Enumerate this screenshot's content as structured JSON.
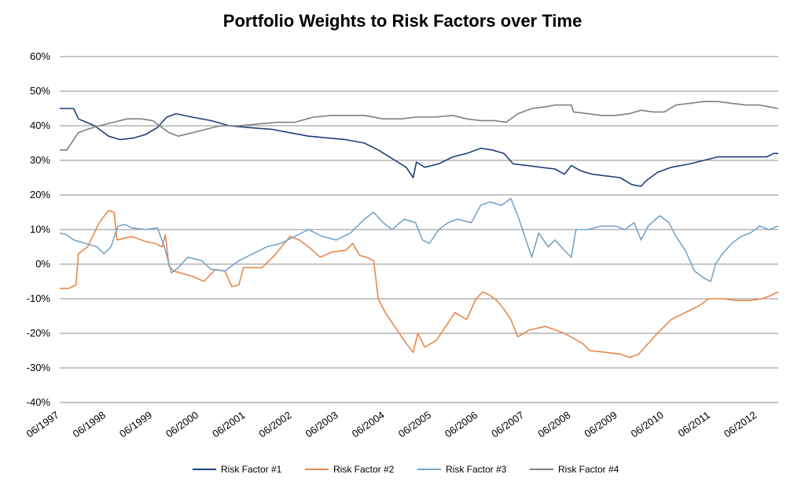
{
  "chart_data": {
    "type": "line",
    "title": "Portfolio Weights to Risk Factors over Time",
    "xlabel": "",
    "ylabel": "",
    "ylim": [
      -40,
      60
    ],
    "y_ticks": [
      -40,
      -30,
      -20,
      -10,
      0,
      10,
      20,
      30,
      40,
      50,
      60
    ],
    "y_tick_labels": [
      "-40%",
      "-30%",
      "-20%",
      "-10%",
      "0%",
      "10%",
      "20%",
      "30%",
      "40%",
      "50%",
      "60%"
    ],
    "xlim": [
      1997.45,
      2012.9
    ],
    "x_ticks": [
      1997.45,
      1998.45,
      1999.45,
      2000.45,
      2001.45,
      2002.45,
      2003.45,
      2004.45,
      2005.45,
      2006.45,
      2007.45,
      2008.45,
      2009.45,
      2010.45,
      2011.45,
      2012.45
    ],
    "x_tick_labels": [
      "06/1997",
      "06/1998",
      "06/1999",
      "06/2000",
      "06/2001",
      "06/2002",
      "06/2003",
      "06/2004",
      "06/2005",
      "06/2006",
      "06/2007",
      "06/2008",
      "06/2009",
      "06/2010",
      "06/2011",
      "06/2012"
    ],
    "grid": true,
    "legend_position": "bottom",
    "series": [
      {
        "name": "Risk Factor #1",
        "color": "#1f3f7a",
        "points": [
          [
            1997.45,
            45
          ],
          [
            1997.75,
            45
          ],
          [
            1997.85,
            42
          ],
          [
            1998.2,
            40
          ],
          [
            1998.5,
            37
          ],
          [
            1998.75,
            36
          ],
          [
            1999.05,
            36.5
          ],
          [
            1999.3,
            37.5
          ],
          [
            1999.55,
            39.5
          ],
          [
            1999.75,
            42.5
          ],
          [
            1999.95,
            43.5
          ],
          [
            2000.3,
            42.5
          ],
          [
            2000.7,
            41.5
          ],
          [
            2001.1,
            40
          ],
          [
            2001.5,
            39.5
          ],
          [
            2002.0,
            39
          ],
          [
            2002.4,
            38
          ],
          [
            2002.8,
            37
          ],
          [
            2003.2,
            36.5
          ],
          [
            2003.6,
            36
          ],
          [
            2004.0,
            35
          ],
          [
            2004.3,
            33
          ],
          [
            2004.6,
            30.5
          ],
          [
            2004.9,
            28
          ],
          [
            2005.05,
            25
          ],
          [
            2005.12,
            29.5
          ],
          [
            2005.3,
            28
          ],
          [
            2005.6,
            29
          ],
          [
            2005.9,
            31
          ],
          [
            2006.2,
            32
          ],
          [
            2006.5,
            33.5
          ],
          [
            2006.75,
            33
          ],
          [
            2007.0,
            32
          ],
          [
            2007.2,
            29
          ],
          [
            2007.5,
            28.5
          ],
          [
            2007.8,
            28
          ],
          [
            2008.1,
            27.5
          ],
          [
            2008.3,
            26
          ],
          [
            2008.45,
            28.5
          ],
          [
            2008.65,
            27
          ],
          [
            2008.9,
            26
          ],
          [
            2009.2,
            25.5
          ],
          [
            2009.5,
            25
          ],
          [
            2009.75,
            23
          ],
          [
            2009.95,
            22.5
          ],
          [
            2010.05,
            24
          ],
          [
            2010.3,
            26.5
          ],
          [
            2010.6,
            28
          ],
          [
            2011.0,
            29
          ],
          [
            2011.3,
            30
          ],
          [
            2011.6,
            31
          ],
          [
            2012.0,
            31
          ],
          [
            2012.4,
            31
          ],
          [
            2012.65,
            31
          ],
          [
            2012.8,
            32
          ],
          [
            2012.9,
            32
          ]
        ]
      },
      {
        "name": "Risk Factor #2",
        "color": "#e8884a",
        "points": [
          [
            1997.45,
            -7
          ],
          [
            1997.65,
            -7
          ],
          [
            1997.8,
            -6
          ],
          [
            1997.85,
            3
          ],
          [
            1998.05,
            5
          ],
          [
            1998.3,
            12
          ],
          [
            1998.5,
            15.5
          ],
          [
            1998.62,
            15
          ],
          [
            1998.68,
            7
          ],
          [
            1999.0,
            8
          ],
          [
            1999.3,
            6.5
          ],
          [
            1999.5,
            6
          ],
          [
            1999.65,
            5
          ],
          [
            1999.72,
            8.5
          ],
          [
            1999.8,
            -0.5
          ],
          [
            1999.9,
            -2
          ],
          [
            2000.3,
            -3.5
          ],
          [
            2000.55,
            -5
          ],
          [
            2000.8,
            -1.5
          ],
          [
            2001.0,
            -2
          ],
          [
            2001.15,
            -6.5
          ],
          [
            2001.3,
            -6
          ],
          [
            2001.4,
            -1
          ],
          [
            2001.8,
            -1
          ],
          [
            2002.1,
            3
          ],
          [
            2002.4,
            8
          ],
          [
            2002.6,
            7
          ],
          [
            2002.8,
            5
          ],
          [
            2003.05,
            2
          ],
          [
            2003.3,
            3.5
          ],
          [
            2003.6,
            4
          ],
          [
            2003.75,
            6
          ],
          [
            2003.9,
            2.5
          ],
          [
            2004.05,
            2
          ],
          [
            2004.2,
            1
          ],
          [
            2004.3,
            -10
          ],
          [
            2004.45,
            -14
          ],
          [
            2004.65,
            -18
          ],
          [
            2004.85,
            -22
          ],
          [
            2005.05,
            -25.5
          ],
          [
            2005.15,
            -20
          ],
          [
            2005.3,
            -24
          ],
          [
            2005.55,
            -22
          ],
          [
            2005.75,
            -18
          ],
          [
            2005.95,
            -14
          ],
          [
            2006.2,
            -16
          ],
          [
            2006.4,
            -10
          ],
          [
            2006.55,
            -8
          ],
          [
            2006.7,
            -9
          ],
          [
            2006.85,
            -10.5
          ],
          [
            2007.0,
            -13
          ],
          [
            2007.15,
            -16
          ],
          [
            2007.3,
            -21
          ],
          [
            2007.55,
            -19
          ],
          [
            2007.9,
            -18
          ],
          [
            2008.3,
            -20
          ],
          [
            2008.5,
            -21.5
          ],
          [
            2008.7,
            -23
          ],
          [
            2008.85,
            -25
          ],
          [
            2009.2,
            -25.5
          ],
          [
            2009.5,
            -26
          ],
          [
            2009.7,
            -27
          ],
          [
            2009.9,
            -26
          ],
          [
            2010.1,
            -23
          ],
          [
            2010.3,
            -20
          ],
          [
            2010.6,
            -16
          ],
          [
            2010.9,
            -14
          ],
          [
            2011.2,
            -12
          ],
          [
            2011.4,
            -10
          ],
          [
            2011.7,
            -10
          ],
          [
            2012.0,
            -10.5
          ],
          [
            2012.3,
            -10.5
          ],
          [
            2012.55,
            -10
          ],
          [
            2012.75,
            -9
          ],
          [
            2012.9,
            -8
          ]
        ]
      },
      {
        "name": "Risk Factor #3",
        "color": "#7aa3c8",
        "points": [
          [
            1997.45,
            9
          ],
          [
            1997.6,
            8.5
          ],
          [
            1997.75,
            7
          ],
          [
            1998.0,
            6
          ],
          [
            1998.25,
            5
          ],
          [
            1998.4,
            3
          ],
          [
            1998.55,
            5
          ],
          [
            1998.7,
            11
          ],
          [
            1998.85,
            11.5
          ],
          [
            1999.0,
            10.5
          ],
          [
            1999.3,
            10
          ],
          [
            1999.55,
            10.5
          ],
          [
            1999.7,
            5
          ],
          [
            1999.85,
            -2.5
          ],
          [
            2000.0,
            -1
          ],
          [
            2000.2,
            2
          ],
          [
            2000.5,
            1
          ],
          [
            2000.7,
            -1.5
          ],
          [
            2001.0,
            -2
          ],
          [
            2001.3,
            1
          ],
          [
            2001.6,
            3
          ],
          [
            2001.9,
            5
          ],
          [
            2002.2,
            6
          ],
          [
            2002.5,
            8
          ],
          [
            2002.8,
            10
          ],
          [
            2003.1,
            8
          ],
          [
            2003.4,
            7
          ],
          [
            2003.7,
            9
          ],
          [
            2004.0,
            13
          ],
          [
            2004.2,
            15
          ],
          [
            2004.4,
            12
          ],
          [
            2004.6,
            10
          ],
          [
            2004.85,
            13
          ],
          [
            2005.1,
            12
          ],
          [
            2005.25,
            7
          ],
          [
            2005.4,
            6
          ],
          [
            2005.6,
            10
          ],
          [
            2005.8,
            12
          ],
          [
            2006.0,
            13
          ],
          [
            2006.3,
            12
          ],
          [
            2006.5,
            17
          ],
          [
            2006.7,
            18
          ],
          [
            2006.95,
            17
          ],
          [
            2007.15,
            19
          ],
          [
            2007.3,
            14
          ],
          [
            2007.45,
            8
          ],
          [
            2007.6,
            2
          ],
          [
            2007.75,
            9
          ],
          [
            2007.95,
            5
          ],
          [
            2008.1,
            7
          ],
          [
            2008.3,
            4
          ],
          [
            2008.45,
            2
          ],
          [
            2008.55,
            10
          ],
          [
            2008.8,
            10
          ],
          [
            2009.1,
            11
          ],
          [
            2009.4,
            11
          ],
          [
            2009.6,
            10
          ],
          [
            2009.8,
            12
          ],
          [
            2009.95,
            7
          ],
          [
            2010.1,
            11
          ],
          [
            2010.35,
            14
          ],
          [
            2010.55,
            12
          ],
          [
            2010.7,
            8
          ],
          [
            2010.9,
            4
          ],
          [
            2011.1,
            -2
          ],
          [
            2011.3,
            -4
          ],
          [
            2011.45,
            -5
          ],
          [
            2011.55,
            0
          ],
          [
            2011.7,
            3
          ],
          [
            2011.9,
            6
          ],
          [
            2012.1,
            8
          ],
          [
            2012.3,
            9
          ],
          [
            2012.5,
            11
          ],
          [
            2012.7,
            10
          ],
          [
            2012.9,
            11
          ]
        ]
      },
      {
        "name": "Risk Factor #4",
        "color": "#7f7f7f",
        "points": [
          [
            1997.45,
            33
          ],
          [
            1997.6,
            33
          ],
          [
            1997.7,
            35
          ],
          [
            1997.85,
            38
          ],
          [
            1998.05,
            39
          ],
          [
            1998.3,
            40
          ],
          [
            1998.6,
            41
          ],
          [
            1998.9,
            42
          ],
          [
            1999.2,
            42
          ],
          [
            1999.45,
            41.5
          ],
          [
            1999.6,
            40
          ],
          [
            1999.8,
            38
          ],
          [
            2000.0,
            37
          ],
          [
            2000.3,
            38
          ],
          [
            2000.6,
            39
          ],
          [
            2000.9,
            40
          ],
          [
            2001.3,
            40
          ],
          [
            2001.7,
            40.5
          ],
          [
            2002.1,
            41
          ],
          [
            2002.5,
            41
          ],
          [
            2002.9,
            42.5
          ],
          [
            2003.3,
            43
          ],
          [
            2003.7,
            43
          ],
          [
            2004.0,
            43
          ],
          [
            2004.4,
            42
          ],
          [
            2004.8,
            42
          ],
          [
            2005.1,
            42.5
          ],
          [
            2005.5,
            42.5
          ],
          [
            2005.9,
            43
          ],
          [
            2006.2,
            42
          ],
          [
            2006.5,
            41.5
          ],
          [
            2006.8,
            41.5
          ],
          [
            2007.05,
            41
          ],
          [
            2007.3,
            43.5
          ],
          [
            2007.6,
            45
          ],
          [
            2007.9,
            45.5
          ],
          [
            2008.1,
            46
          ],
          [
            2008.3,
            46
          ],
          [
            2008.45,
            46
          ],
          [
            2008.5,
            44
          ],
          [
            2008.8,
            43.5
          ],
          [
            2009.1,
            43
          ],
          [
            2009.4,
            43
          ],
          [
            2009.7,
            43.5
          ],
          [
            2009.95,
            44.5
          ],
          [
            2010.2,
            44
          ],
          [
            2010.45,
            44
          ],
          [
            2010.7,
            46
          ],
          [
            2011.0,
            46.5
          ],
          [
            2011.3,
            47
          ],
          [
            2011.6,
            47
          ],
          [
            2011.9,
            46.5
          ],
          [
            2012.2,
            46
          ],
          [
            2012.5,
            46
          ],
          [
            2012.7,
            45.5
          ],
          [
            2012.9,
            45
          ]
        ]
      }
    ]
  }
}
